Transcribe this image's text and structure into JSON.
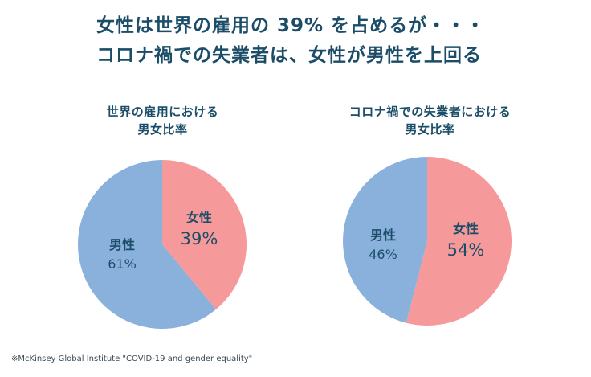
{
  "title": {
    "line1": "女性は世界の雇用の 39% を占めるが・・・",
    "line2": "コロナ禍での失業者は、女性が男性を上回る"
  },
  "colors": {
    "female": "#f6999a",
    "male": "#89b1dc",
    "text": "#1b4d68"
  },
  "chart_data": [
    {
      "type": "pie",
      "title_lines": [
        "世界の雇用における",
        "男女比率"
      ],
      "slices": [
        {
          "label": "女性",
          "value": 39,
          "value_label": "39%",
          "color": "#f6999a"
        },
        {
          "label": "男性",
          "value": 61,
          "value_label": "61%",
          "color": "#89b1dc"
        }
      ]
    },
    {
      "type": "pie",
      "title_lines": [
        "コロナ禍での失業者における",
        "男女比率"
      ],
      "slices": [
        {
          "label": "女性",
          "value": 54,
          "value_label": "54%",
          "color": "#f6999a"
        },
        {
          "label": "男性",
          "value": 46,
          "value_label": "46%",
          "color": "#89b1dc"
        }
      ]
    }
  ],
  "footnote": "※McKinsey Global Institute \"COVID-19 and gender equality\""
}
